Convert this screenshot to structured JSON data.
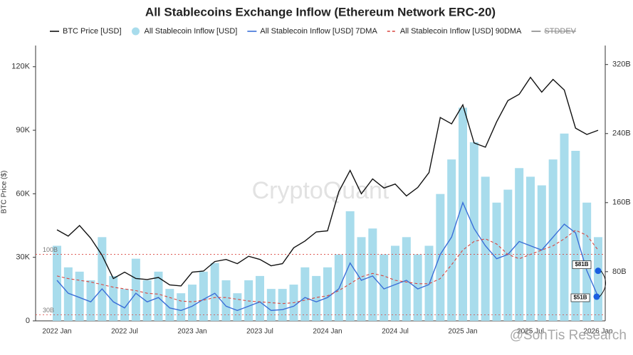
{
  "chart_data": {
    "type": "line",
    "title": "All Stablecoins Exchange Inflow (Ethereum Network ERC-20)",
    "y_label": "BTC Price ($)",
    "watermark": "CryptoQuant",
    "credit": "@SonTis Research",
    "legend_extra": "STDDEV",
    "categories": [
      "2022 Jan",
      null,
      null,
      null,
      null,
      null,
      "2022 Jul",
      null,
      null,
      null,
      null,
      null,
      "2023 Jan",
      null,
      null,
      null,
      null,
      null,
      "2023 Jul",
      null,
      null,
      null,
      null,
      null,
      "2024 Jan",
      null,
      null,
      null,
      null,
      null,
      "2024 Jul",
      null,
      null,
      null,
      null,
      null,
      "2025 Jan",
      null,
      null,
      null,
      null,
      null,
      "2025 Jul",
      null,
      null,
      null,
      null,
      null,
      "2026 Jan"
    ],
    "ylim": [
      0,
      130000
    ],
    "yticks": [
      0,
      {
        "value": 30000,
        "label": "30K"
      },
      {
        "value": 60000,
        "label": "60K"
      },
      {
        "value": 90000,
        "label": "90K"
      },
      {
        "value": 120000,
        "label": "120K"
      }
    ],
    "y2lim": [
      23,
      342
    ],
    "y2ticks": [
      {
        "value": 80,
        "label": "80B"
      },
      {
        "value": 160,
        "label": "160B"
      },
      {
        "value": 240,
        "label": "240B"
      },
      {
        "value": 320,
        "label": "320B"
      }
    ],
    "ref_lines": [
      {
        "value": 100,
        "label": "100B"
      },
      {
        "value": 30,
        "label": "30B"
      }
    ],
    "series": [
      {
        "name": "All Stablecoin Inflow [USD]",
        "type": "bar",
        "axis": "y2",
        "color": "#a8dcec",
        "values": [
          110,
          85,
          80,
          70,
          120,
          75,
          60,
          95,
          70,
          80,
          60,
          55,
          65,
          80,
          90,
          70,
          55,
          70,
          75,
          60,
          60,
          65,
          85,
          75,
          85,
          100,
          150,
          120,
          130,
          100,
          110,
          120,
          100,
          110,
          170,
          210,
          270,
          230,
          190,
          160,
          175,
          200,
          190,
          180,
          210,
          240,
          220,
          160,
          120
        ]
      },
      {
        "name": "BTC Price [USD]",
        "type": "line",
        "color": "#111111",
        "width": 1.4,
        "values": [
          43000,
          40000,
          45000,
          39000,
          31000,
          20000,
          23000,
          20000,
          19500,
          20500,
          17000,
          16500,
          23000,
          23500,
          28000,
          29000,
          27000,
          30500,
          29000,
          26000,
          27000,
          34500,
          37700,
          42000,
          42500,
          61000,
          71000,
          60000,
          67000,
          62700,
          64600,
          59000,
          63000,
          70000,
          96000,
          93000,
          102000,
          84000,
          82000,
          94000,
          104000,
          107000,
          115000,
          108000,
          114000,
          109000,
          91000,
          88000,
          90000
        ]
      },
      {
        "name": "All Stablecoin Inflow [USD] 7DMA",
        "type": "line",
        "axis": "y2",
        "color": "#3a6fd8",
        "width": 1.4,
        "values": [
          70,
          55,
          50,
          45,
          60,
          45,
          38,
          55,
          45,
          50,
          38,
          35,
          40,
          48,
          55,
          40,
          35,
          40,
          45,
          35,
          36,
          40,
          50,
          45,
          50,
          60,
          90,
          70,
          75,
          60,
          65,
          70,
          60,
          65,
          100,
          120,
          160,
          130,
          110,
          95,
          100,
          115,
          110,
          105,
          120,
          135,
          125,
          81,
          51
        ]
      },
      {
        "name": "All Stablecoin Inflow [USD] 90DMA",
        "type": "line",
        "axis": "y2",
        "color": "#d9453f",
        "width": 1.1,
        "dash": "4 3",
        "values": [
          75,
          72,
          70,
          68,
          65,
          62,
          60,
          58,
          55,
          54,
          50,
          46,
          45,
          47,
          50,
          50,
          48,
          46,
          45,
          44,
          43,
          44,
          47,
          50,
          52,
          58,
          66,
          74,
          78,
          75,
          70,
          68,
          66,
          66,
          72,
          88,
          105,
          115,
          118,
          112,
          100,
          95,
          100,
          105,
          110,
          118,
          128,
          122,
          105
        ]
      }
    ],
    "annotations": [
      {
        "value": 81,
        "label": "$81B"
      },
      {
        "value": 51,
        "label": "$51B"
      }
    ]
  }
}
